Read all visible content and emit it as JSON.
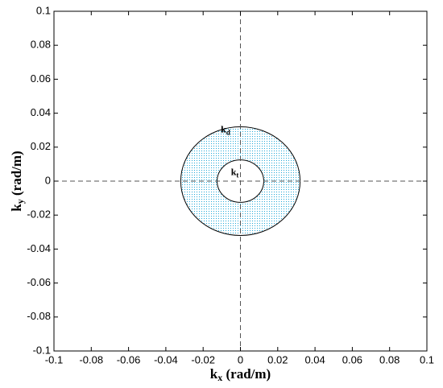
{
  "chart_data": {
    "type": "annulus",
    "xlabel": {
      "main": "k",
      "sub": "x",
      "rest": " (rad/m)"
    },
    "ylabel": {
      "main": "k",
      "sub": "y",
      "rest": " (rad/m)"
    },
    "xlim": [
      -0.1,
      0.1
    ],
    "ylim": [
      -0.1,
      0.1
    ],
    "xticks": [
      -0.1,
      -0.08,
      -0.06,
      -0.04,
      -0.02,
      0,
      0.02,
      0.04,
      0.06,
      0.08,
      0.1
    ],
    "yticks": [
      -0.1,
      -0.08,
      -0.06,
      -0.04,
      -0.02,
      0,
      0.02,
      0.04,
      0.06,
      0.08,
      0.1
    ],
    "center": [
      0,
      0
    ],
    "outer_radius": 0.032,
    "inner_radius": 0.0125,
    "color": "#1fa7d8",
    "annotations": [
      {
        "main": "k",
        "sub": "d",
        "x": -0.008,
        "y": 0.03
      },
      {
        "main": "k",
        "sub": "t",
        "x": -0.003,
        "y": 0.005
      }
    ]
  }
}
